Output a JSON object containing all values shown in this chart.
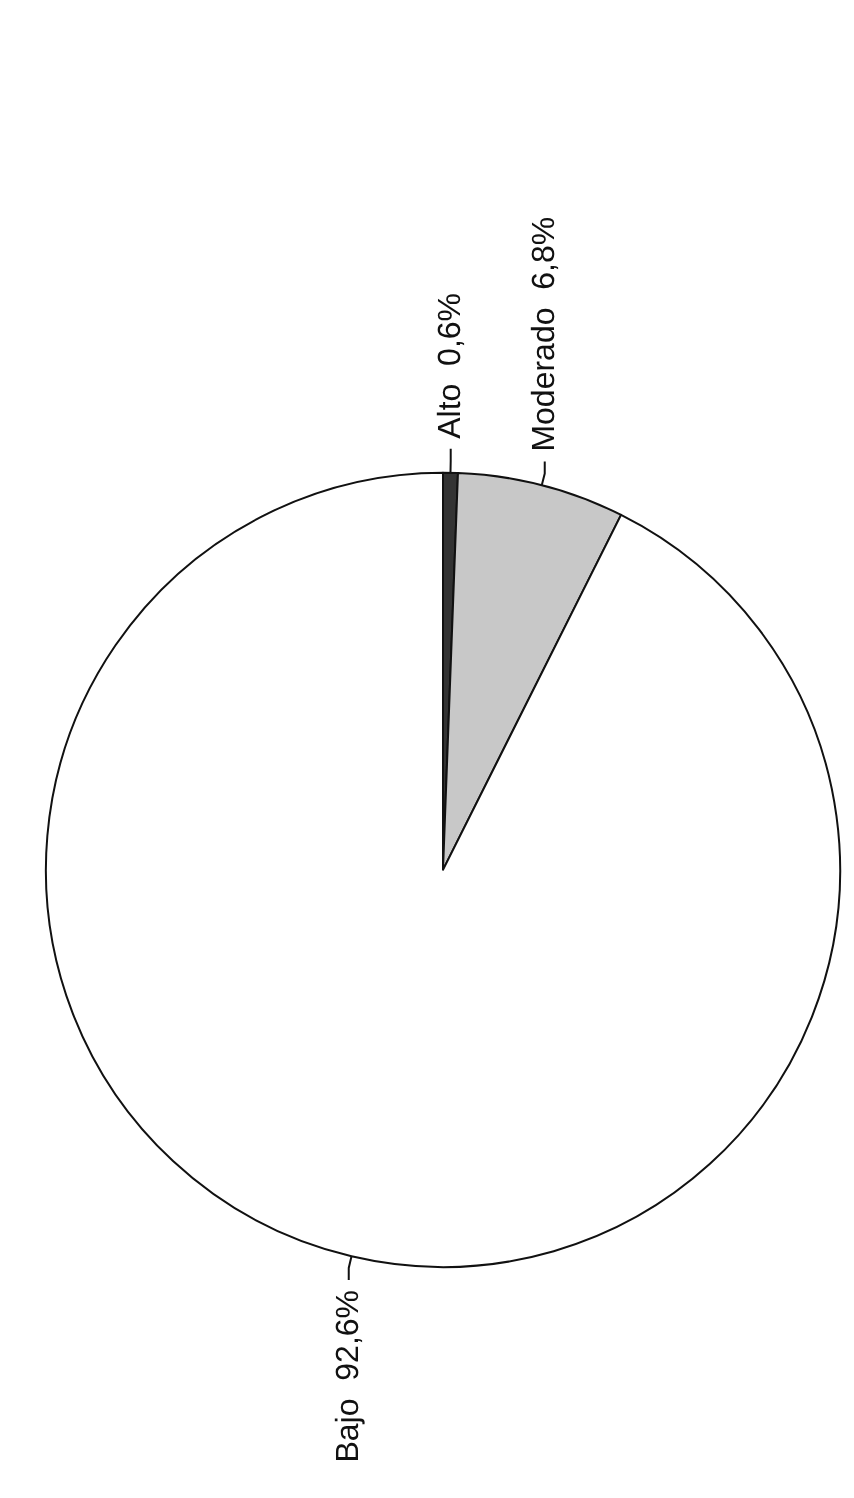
{
  "chart_data": {
    "type": "pie",
    "categories": [
      "Alto",
      "Moderado",
      "Bajo"
    ],
    "values": [
      0.6,
      6.8,
      92.6
    ],
    "colors": [
      "#333333",
      "#c8c8c8",
      "#ffffff"
    ],
    "value_labels": [
      "0,6%",
      "6,8%",
      "92,6%"
    ],
    "legend": false
  }
}
